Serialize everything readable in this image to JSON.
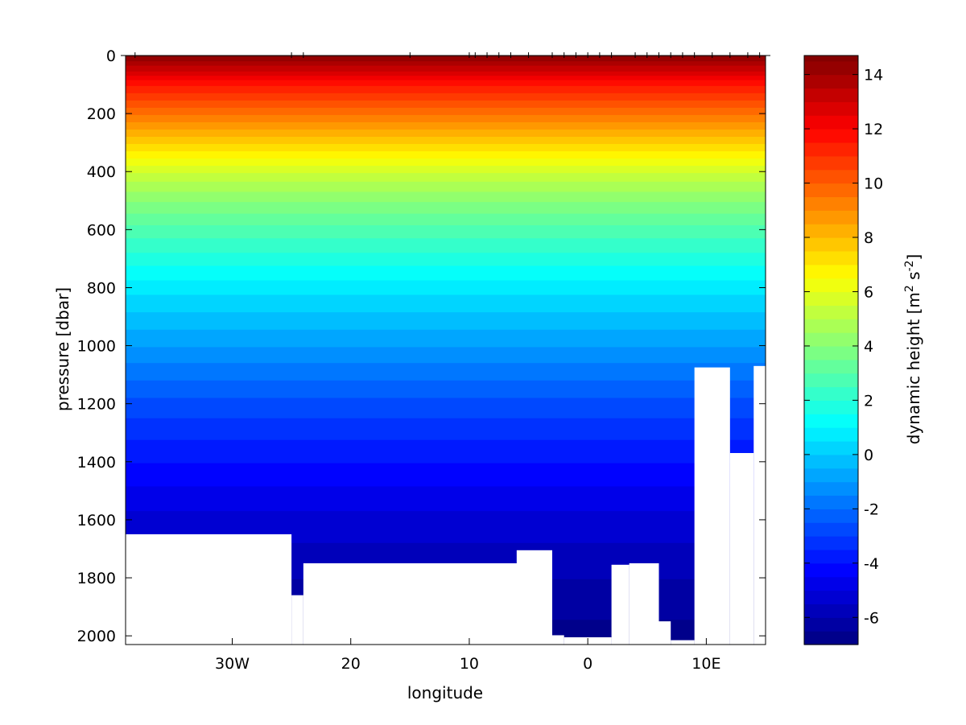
{
  "chart_data": {
    "type": "heatmap",
    "title": "",
    "xlabel": "longitude",
    "ylabel": "pressure [dbar]",
    "xlim": [
      -39,
      15
    ],
    "ylim": [
      2030,
      0
    ],
    "x_ticks": [
      {
        "value": -30,
        "label": "30W"
      },
      {
        "value": -20,
        "label": "20"
      },
      {
        "value": -10,
        "label": "10"
      },
      {
        "value": 0,
        "label": "0"
      },
      {
        "value": 10,
        "label": "10E"
      }
    ],
    "y_ticks": [
      0,
      200,
      400,
      600,
      800,
      1000,
      1200,
      1400,
      1600,
      1800,
      2000
    ],
    "station_longitudes": [
      -38.2,
      -25,
      -24,
      -15,
      -10,
      -9.5,
      -8.5,
      -7.5,
      -6.5,
      -5,
      -3,
      -2,
      -1,
      0,
      1,
      2,
      4,
      5,
      6,
      7,
      8,
      9,
      10.5,
      12,
      13.5,
      14.5
    ],
    "bottom_profile": [
      {
        "x": [
          -39,
          -25
        ],
        "p": 1650
      },
      {
        "x": [
          -25,
          -24
        ],
        "p": 1860
      },
      {
        "x": [
          -24,
          -3.5
        ],
        "p": 1750
      },
      {
        "x": [
          -6,
          -3
        ],
        "p": 1705
      },
      {
        "x": [
          -3,
          -2
        ],
        "p": 1998
      },
      {
        "x": [
          -2,
          2
        ],
        "p": 2005
      },
      {
        "x": [
          2,
          3.5
        ],
        "p": 1755
      },
      {
        "x": [
          3.5,
          6
        ],
        "p": 1750
      },
      {
        "x": [
          6,
          7
        ],
        "p": 1950
      },
      {
        "x": [
          7,
          9
        ],
        "p": 2015
      },
      {
        "x": [
          9,
          12
        ],
        "p": 1075
      },
      {
        "x": [
          12,
          14
        ],
        "p": 1370
      },
      {
        "x": [
          14,
          15
        ],
        "p": 1070
      }
    ],
    "field": {
      "name": "dynamic height",
      "description_levels": [
        {
          "p": 0,
          "value": 14.5
        },
        {
          "p": 100,
          "value": 11.5
        },
        {
          "p": 200,
          "value": 9.5
        },
        {
          "p": 300,
          "value": 7.5
        },
        {
          "p": 400,
          "value": 5.5
        },
        {
          "p": 500,
          "value": 4
        },
        {
          "p": 600,
          "value": 2.8
        },
        {
          "p": 800,
          "value": 0.7
        },
        {
          "p": 1000,
          "value": -1
        },
        {
          "p": 1200,
          "value": -2.7
        },
        {
          "p": 1400,
          "value": -4
        },
        {
          "p": 1600,
          "value": -5.2
        },
        {
          "p": 1800,
          "value": -6
        },
        {
          "p": 2000,
          "value": -6.7
        }
      ]
    },
    "colorbar": {
      "label": "dynamic height [m",
      "label_sup1": "2",
      "label_mid": " s",
      "label_sup2": "-2",
      "label_end": "]",
      "range": [
        -7,
        14.7
      ],
      "ticks": [
        -6,
        -4,
        -2,
        0,
        2,
        4,
        6,
        8,
        10,
        12,
        14
      ],
      "colormap": "jet"
    }
  }
}
